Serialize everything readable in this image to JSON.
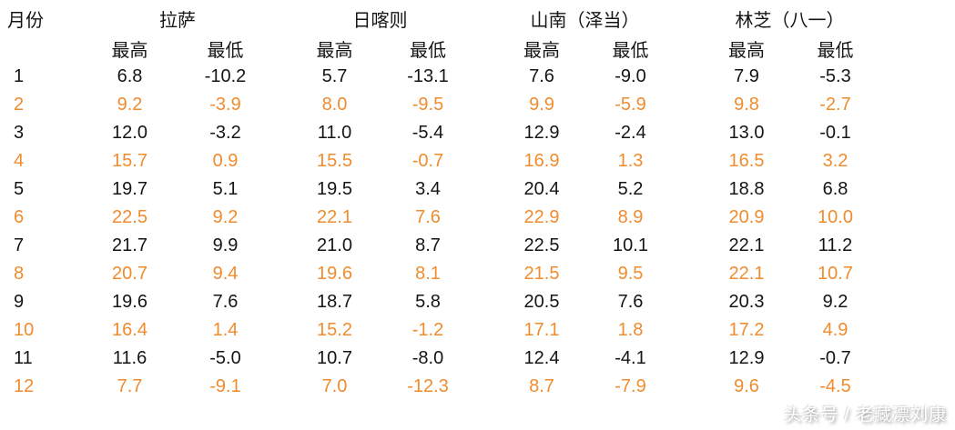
{
  "table_ui": {
    "month_header": "月份",
    "high_label": "最高",
    "low_label": "最低"
  },
  "colors": {
    "accent_orange": "#F08C2E",
    "text": "#151515"
  },
  "watermark": {
    "text": "头条号 / 老藏漂刘康"
  },
  "chart_data": {
    "type": "table",
    "months": [
      1,
      2,
      3,
      4,
      5,
      6,
      7,
      8,
      9,
      10,
      11,
      12
    ],
    "column_groups": [
      "拉萨",
      "日喀则",
      "山南（泽当）",
      "林芝（八一）"
    ],
    "sub_columns": [
      "最高",
      "最低"
    ],
    "series": [
      {
        "city": "拉萨",
        "high": [
          6.8,
          9.2,
          12.0,
          15.7,
          19.7,
          22.5,
          21.7,
          20.7,
          19.6,
          16.4,
          11.6,
          7.7
        ],
        "low": [
          -10.2,
          -3.9,
          -3.2,
          0.9,
          5.1,
          9.2,
          9.9,
          9.4,
          7.6,
          1.4,
          -5.0,
          -9.1
        ]
      },
      {
        "city": "日喀则",
        "high": [
          5.7,
          8.0,
          11.0,
          15.5,
          19.5,
          22.1,
          21.0,
          19.6,
          18.7,
          15.2,
          10.7,
          7.0
        ],
        "low": [
          -13.1,
          -9.5,
          -5.4,
          -0.7,
          3.4,
          7.6,
          8.7,
          8.1,
          5.8,
          -1.2,
          -8.0,
          -12.3
        ]
      },
      {
        "city": "山南（泽当）",
        "high": [
          7.6,
          9.9,
          12.9,
          16.9,
          20.4,
          22.9,
          22.5,
          21.5,
          20.5,
          17.1,
          12.4,
          8.7
        ],
        "low": [
          -9.0,
          -5.9,
          -2.4,
          1.3,
          5.2,
          8.9,
          10.1,
          9.5,
          7.6,
          1.8,
          -4.1,
          -7.9
        ]
      },
      {
        "city": "林芝（八一）",
        "high": [
          7.9,
          9.8,
          13.0,
          16.5,
          18.8,
          20.9,
          22.1,
          22.1,
          20.3,
          17.2,
          12.9,
          9.6
        ],
        "low": [
          -5.3,
          -2.7,
          -0.1,
          3.2,
          6.8,
          10.0,
          11.2,
          10.7,
          9.2,
          4.9,
          -0.7,
          -4.5
        ]
      }
    ]
  }
}
